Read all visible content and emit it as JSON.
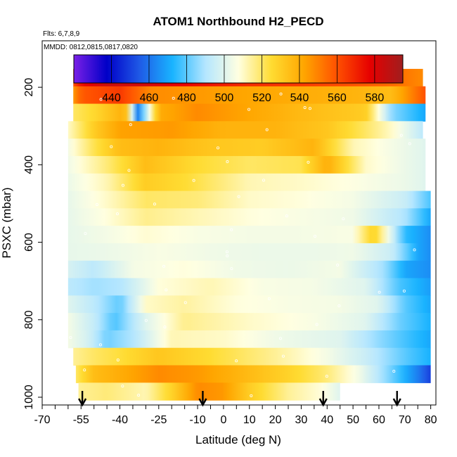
{
  "chart_data": {
    "type": "heatmap",
    "title": "ATOM1 Northbound H2_PECD",
    "flights_label": "Flts: 6,7,8,9",
    "dates_label": "MMDD: 0812,0815,0817,0820",
    "xlabel": "Latitude (deg N)",
    "ylabel": "PSXC (mbar)",
    "xlim": [
      -70,
      82
    ],
    "ylim": [
      1020,
      80
    ],
    "x_ticks": [
      -70,
      -55,
      -40,
      -25,
      -10,
      0,
      10,
      20,
      30,
      40,
      50,
      60,
      70,
      80
    ],
    "x_tick_labels": [
      "-70",
      "-55",
      "-40",
      "-25",
      "-10",
      "0",
      "10",
      "20",
      "30",
      "40",
      "50",
      "60",
      "70",
      "80"
    ],
    "y_ticks": [
      200,
      400,
      600,
      800,
      1000
    ],
    "y_tick_labels": [
      "200",
      "400",
      "600",
      "800",
      "1000"
    ],
    "colorbar": {
      "min": 420,
      "max": 595,
      "ticks": [
        440,
        460,
        480,
        500,
        520,
        540,
        560,
        580
      ],
      "tick_labels": [
        "440",
        "460",
        "480",
        "500",
        "520",
        "540",
        "560",
        "580"
      ],
      "colors": [
        "#7a1fe6",
        "#0000c8",
        "#1f5ae6",
        "#19b4ff",
        "#b4e6ff",
        "#ffffe1",
        "#ffdc32",
        "#ffa500",
        "#ff5000",
        "#e60000",
        "#a01e1e"
      ]
    },
    "arrows_lat": [
      -54.5,
      -8,
      38.5,
      67
    ],
    "lat_range": [
      -58,
      80
    ],
    "layers": [
      {
        "p": 175,
        "lat": [
          -58,
          -55,
          -45,
          -30,
          -10,
          10,
          30,
          50,
          65,
          77
        ],
        "val": [
          560,
          575,
          585,
          583,
          575,
          568,
          565,
          560,
          555,
          548
        ]
      },
      {
        "p": 220,
        "lat": [
          -58,
          -55,
          -40,
          -28,
          -10,
          10,
          30,
          50,
          65,
          78
        ],
        "val": [
          545,
          558,
          565,
          548,
          545,
          542,
          540,
          538,
          535,
          560
        ]
      },
      {
        "p": 265,
        "lat": [
          -58,
          -50,
          -38,
          -33,
          -25,
          -10,
          10,
          30,
          55,
          65,
          78
        ],
        "val": [
          520,
          526,
          540,
          462,
          540,
          548,
          542,
          536,
          530,
          485,
          470
        ]
      },
      {
        "p": 310,
        "lat": [
          -60,
          -50,
          -40,
          -20,
          0,
          20,
          40,
          55,
          65,
          77
        ],
        "val": [
          510,
          530,
          543,
          545,
          538,
          538,
          532,
          520,
          510,
          492
        ]
      },
      {
        "p": 355,
        "lat": [
          -60,
          -50,
          -40,
          -25,
          -5,
          15,
          35,
          50,
          65,
          78
        ],
        "val": [
          505,
          522,
          535,
          538,
          532,
          530,
          538,
          512,
          505,
          500
        ]
      },
      {
        "p": 400,
        "lat": [
          -60,
          -45,
          -30,
          -10,
          10,
          30,
          40,
          55,
          70,
          78
        ],
        "val": [
          504,
          518,
          535,
          525,
          520,
          522,
          540,
          510,
          503,
          500
        ]
      },
      {
        "p": 445,
        "lat": [
          -60,
          -45,
          -30,
          -15,
          10,
          30,
          50,
          70,
          78
        ],
        "val": [
          503,
          512,
          530,
          525,
          512,
          510,
          507,
          503,
          500
        ]
      },
      {
        "p": 490,
        "lat": [
          -60,
          -45,
          -30,
          -10,
          10,
          30,
          50,
          70,
          80
        ],
        "val": [
          502,
          510,
          520,
          518,
          510,
          508,
          505,
          495,
          478
        ]
      },
      {
        "p": 535,
        "lat": [
          -60,
          -45,
          -30,
          -10,
          10,
          30,
          50,
          70,
          80
        ],
        "val": [
          502,
          508,
          516,
          512,
          508,
          506,
          504,
          490,
          470
        ]
      },
      {
        "p": 580,
        "lat": [
          -60,
          -45,
          -30,
          -10,
          10,
          30,
          50,
          58,
          70,
          80
        ],
        "val": [
          502,
          505,
          509,
          506,
          505,
          505,
          506,
          530,
          475,
          465
        ]
      },
      {
        "p": 625,
        "lat": [
          -60,
          -45,
          -25,
          -5,
          15,
          35,
          50,
          65,
          75,
          80
        ],
        "val": [
          502,
          503,
          506,
          504,
          503,
          503,
          504,
          495,
          470,
          465
        ]
      },
      {
        "p": 670,
        "lat": [
          -60,
          -50,
          -35,
          -15,
          5,
          25,
          45,
          62,
          70,
          80
        ],
        "val": [
          498,
          492,
          505,
          508,
          504,
          503,
          505,
          488,
          470,
          465
        ]
      },
      {
        "p": 715,
        "lat": [
          -60,
          -50,
          -40,
          -25,
          -5,
          15,
          35,
          55,
          68,
          80
        ],
        "val": [
          492,
          488,
          490,
          508,
          512,
          506,
          505,
          500,
          478,
          468
        ]
      },
      {
        "p": 760,
        "lat": [
          -60,
          -50,
          -40,
          -30,
          -15,
          5,
          25,
          45,
          60,
          70,
          80
        ],
        "val": [
          500,
          492,
          480,
          510,
          514,
          508,
          506,
          505,
          500,
          480,
          470
        ]
      },
      {
        "p": 805,
        "lat": [
          -60,
          -50,
          -42,
          -30,
          -15,
          10,
          35,
          55,
          68,
          80
        ],
        "val": [
          505,
          494,
          478,
          500,
          516,
          510,
          506,
          500,
          482,
          472
        ]
      },
      {
        "p": 850,
        "lat": [
          -60,
          -52,
          -45,
          -35,
          -20,
          0,
          20,
          45,
          60,
          72,
          80
        ],
        "val": [
          505,
          497,
          482,
          490,
          512,
          510,
          504,
          500,
          486,
          476,
          470
        ]
      },
      {
        "p": 895,
        "lat": [
          -58,
          -50,
          -40,
          -25,
          -5,
          20,
          40,
          55,
          70,
          80
        ],
        "val": [
          515,
          520,
          524,
          532,
          525,
          515,
          505,
          495,
          480,
          472
        ]
      },
      {
        "p": 940,
        "lat": [
          -57,
          -50,
          -40,
          -25,
          -10,
          5,
          25,
          40,
          52,
          65,
          75,
          80
        ],
        "val": [
          520,
          535,
          540,
          548,
          545,
          538,
          528,
          518,
          505,
          482,
          462,
          450
        ]
      },
      {
        "p": 985,
        "lat": [
          -56,
          -45,
          -30,
          -20,
          -10,
          0,
          10,
          25,
          38,
          45
        ],
        "val": [
          515,
          518,
          512,
          528,
          548,
          545,
          530,
          515,
          508,
          500
        ]
      }
    ]
  }
}
